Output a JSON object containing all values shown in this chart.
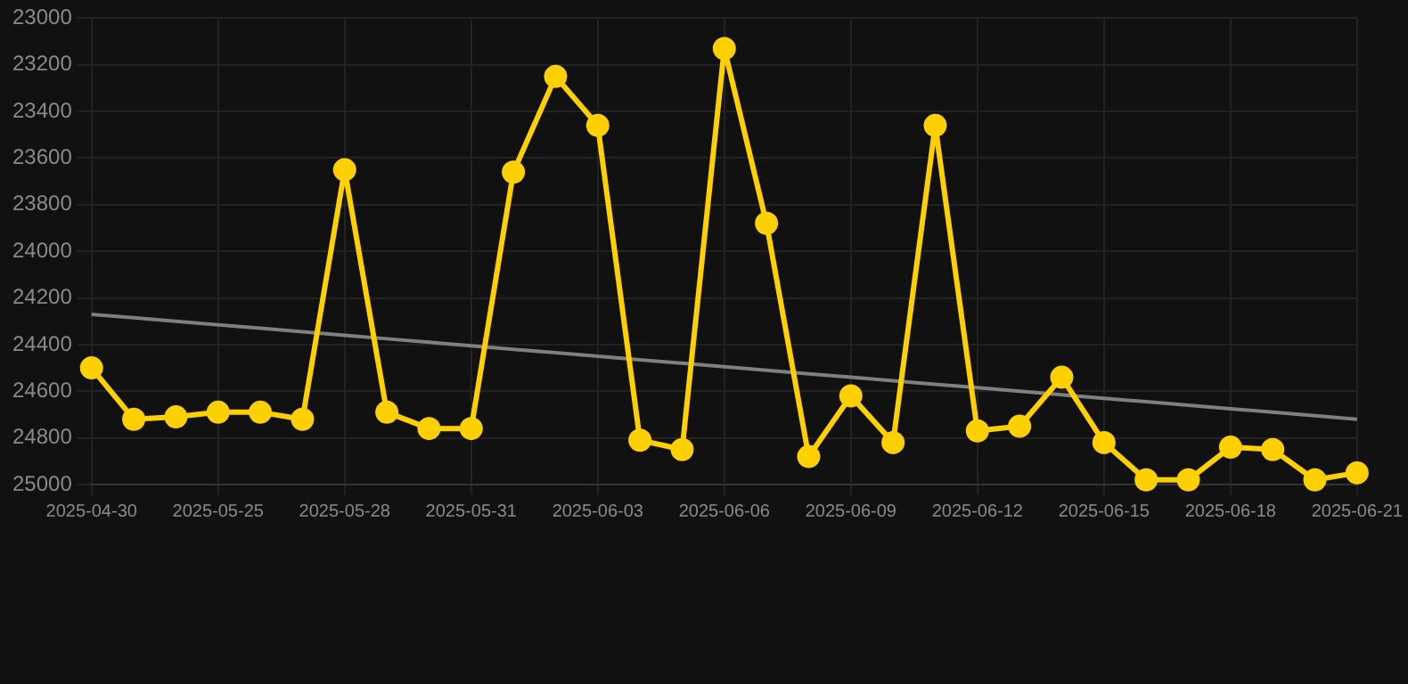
{
  "chart_data": {
    "type": "line",
    "categories": [
      "2025-04-30",
      null,
      null,
      "2025-05-25",
      null,
      null,
      "2025-05-28",
      null,
      null,
      "2025-05-31",
      null,
      null,
      "2025-06-03",
      null,
      null,
      "2025-06-06",
      null,
      null,
      "2025-06-09",
      null,
      null,
      "2025-06-12",
      null,
      null,
      "2025-06-15",
      null,
      null,
      "2025-06-18",
      null,
      null,
      "2025-06-21"
    ],
    "series": [
      {
        "color": "#ffd000",
        "values": [
          24500,
          24720,
          24710,
          24690,
          24690,
          24720,
          23650,
          24690,
          24760,
          24760,
          23660,
          23250,
          23460,
          24810,
          24850,
          23130,
          23880,
          24880,
          24620,
          24820,
          23460,
          24770,
          24750,
          24540,
          24820,
          24980,
          24980,
          24840,
          24850,
          24980,
          24950
        ]
      },
      {
        "type": "line",
        "color": "#808080",
        "marker": "none",
        "values": [
          24270,
          24285,
          24300,
          24315,
          24330,
          24345,
          24360,
          24375,
          24390,
          24405,
          24420,
          24435,
          24450,
          24465,
          24480,
          24495,
          24510,
          24525,
          24540,
          24555,
          24570,
          24585,
          24600,
          24615,
          24630,
          24645,
          24660,
          24675,
          24690,
          24705,
          24720
        ]
      }
    ],
    "ylim": [
      25000,
      23000
    ],
    "yticks": [
      23000,
      23200,
      23400,
      23600,
      23800,
      24000,
      24200,
      24400,
      24600,
      24800,
      25000
    ],
    "grid": true,
    "legend": false,
    "marker": "circle",
    "line_style": "solid"
  }
}
